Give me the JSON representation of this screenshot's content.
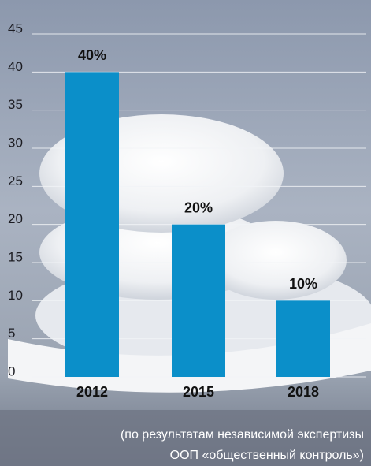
{
  "chart_data": {
    "type": "bar",
    "categories": [
      "2012",
      "2015",
      "2018"
    ],
    "values": [
      40,
      20,
      10
    ],
    "value_labels": [
      "40%",
      "20%",
      "10%"
    ],
    "color": "#0b8fc9",
    "ylim": [
      0,
      45
    ],
    "yticks": [
      0,
      5,
      10,
      15,
      20,
      25,
      30,
      35,
      40,
      45
    ],
    "grid": true,
    "footnote": [
      "(по результатам независимой экспертизы",
      "ООП «общественный контроль»)"
    ]
  }
}
